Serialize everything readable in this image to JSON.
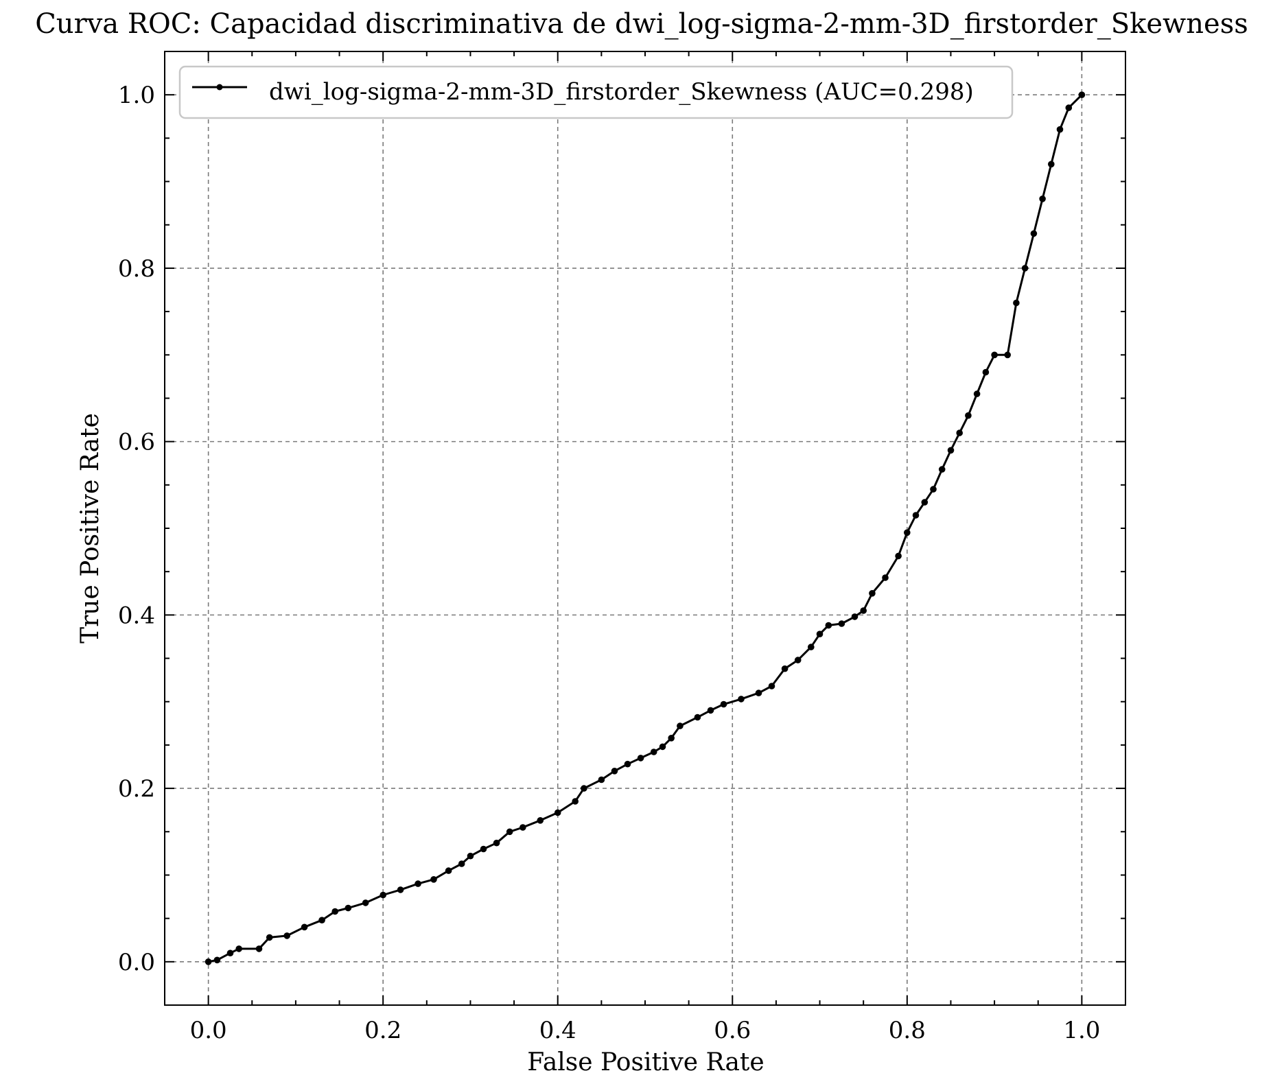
{
  "chart_data": {
    "type": "line",
    "title": "Curva ROC: Capacidad discriminativa de dwi_log-sigma-2-mm-3D_firstorder_Skewness",
    "xlabel": "False Positive Rate",
    "ylabel": "True Positive Rate",
    "xlim": [
      -0.05,
      1.05
    ],
    "ylim": [
      -0.05,
      1.05
    ],
    "xticks": [
      "0.0",
      "0.2",
      "0.4",
      "0.6",
      "0.8",
      "1.0"
    ],
    "yticks": [
      "0.0",
      "0.2",
      "0.4",
      "0.6",
      "0.8",
      "1.0"
    ],
    "grid": true,
    "legend_position": "top-left",
    "series": [
      {
        "name": "dwi_log-sigma-2-mm-3D_firstorder_Skewness (AUC=0.298)",
        "color": "#000000",
        "marker": "circle",
        "x": [
          0.0,
          0.01,
          0.025,
          0.035,
          0.058,
          0.07,
          0.09,
          0.11,
          0.13,
          0.145,
          0.16,
          0.18,
          0.2,
          0.22,
          0.24,
          0.258,
          0.275,
          0.29,
          0.3,
          0.315,
          0.33,
          0.345,
          0.36,
          0.38,
          0.4,
          0.42,
          0.43,
          0.45,
          0.465,
          0.48,
          0.495,
          0.51,
          0.52,
          0.53,
          0.54,
          0.56,
          0.575,
          0.59,
          0.61,
          0.63,
          0.645,
          0.66,
          0.675,
          0.69,
          0.7,
          0.71,
          0.725,
          0.74,
          0.75,
          0.76,
          0.775,
          0.79,
          0.8,
          0.81,
          0.82,
          0.83,
          0.84,
          0.85,
          0.86,
          0.87,
          0.88,
          0.89,
          0.9,
          0.915,
          0.925,
          0.935,
          0.945,
          0.955,
          0.965,
          0.975,
          0.985,
          1.0
        ],
        "y": [
          0.0,
          0.002,
          0.01,
          0.015,
          0.015,
          0.028,
          0.03,
          0.04,
          0.048,
          0.058,
          0.062,
          0.068,
          0.077,
          0.083,
          0.09,
          0.095,
          0.105,
          0.113,
          0.122,
          0.13,
          0.137,
          0.15,
          0.155,
          0.163,
          0.172,
          0.185,
          0.2,
          0.21,
          0.22,
          0.228,
          0.235,
          0.242,
          0.248,
          0.258,
          0.272,
          0.282,
          0.29,
          0.297,
          0.303,
          0.31,
          0.318,
          0.338,
          0.348,
          0.363,
          0.378,
          0.388,
          0.39,
          0.398,
          0.405,
          0.425,
          0.443,
          0.468,
          0.495,
          0.515,
          0.53,
          0.545,
          0.568,
          0.59,
          0.61,
          0.63,
          0.655,
          0.68,
          0.7,
          0.7,
          0.76,
          0.8,
          0.84,
          0.88,
          0.92,
          0.96,
          0.985,
          1.0
        ]
      }
    ]
  }
}
